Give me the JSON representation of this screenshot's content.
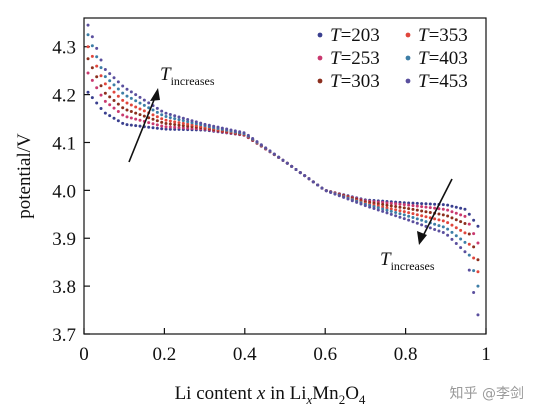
{
  "chart_data": {
    "type": "scatter",
    "title": "",
    "xlabel": {
      "prefix": "Li content ",
      "var": "x",
      "mid": " in Li",
      "sub1": "x",
      "mn": "Mn",
      "sub2": "2",
      "o": "O",
      "sub3": "4"
    },
    "ylabel": "potential/V",
    "xlim": [
      0,
      1
    ],
    "ylim": [
      3.7,
      4.36
    ],
    "x_ticks": [
      "0",
      "0.2",
      "0.4",
      "0.6",
      "0.8",
      "1"
    ],
    "y_ticks": [
      "3.7",
      "3.8",
      "3.9",
      "4.0",
      "4.1",
      "4.2",
      "4.3"
    ],
    "grid": false,
    "legend_position": "top-right",
    "series": [
      {
        "name": "T=203",
        "var": "T",
        "value": "=203",
        "color": "#3a3f8f",
        "x": [
          0.01,
          0.05,
          0.1,
          0.2,
          0.3,
          0.4,
          0.5,
          0.6,
          0.7,
          0.8,
          0.9,
          0.95,
          0.98
        ],
        "y": [
          4.205,
          4.163,
          4.138,
          4.128,
          4.126,
          4.115,
          4.06,
          4.0,
          3.98,
          3.974,
          3.97,
          3.96,
          3.925
        ]
      },
      {
        "name": "T=253",
        "var": "T",
        "value": "=253",
        "color": "#c9396f",
        "x": [
          0.01,
          0.05,
          0.1,
          0.2,
          0.3,
          0.4,
          0.5,
          0.6,
          0.7,
          0.8,
          0.9,
          0.95,
          0.98
        ],
        "y": [
          4.245,
          4.188,
          4.155,
          4.133,
          4.128,
          4.115,
          4.06,
          4.0,
          3.978,
          3.97,
          3.96,
          3.945,
          3.89
        ]
      },
      {
        "name": "T=303",
        "var": "T",
        "value": "=303",
        "color": "#8c2f1e",
        "x": [
          0.01,
          0.05,
          0.1,
          0.2,
          0.3,
          0.4,
          0.5,
          0.6,
          0.7,
          0.8,
          0.9,
          0.95,
          0.98
        ],
        "y": [
          4.275,
          4.205,
          4.17,
          4.14,
          4.13,
          4.116,
          4.06,
          4.0,
          3.976,
          3.963,
          3.948,
          3.93,
          3.855
        ]
      },
      {
        "name": "T=353",
        "var": "T",
        "value": "=353",
        "color": "#e0463c",
        "x": [
          0.01,
          0.05,
          0.1,
          0.2,
          0.3,
          0.4,
          0.5,
          0.6,
          0.7,
          0.8,
          0.9,
          0.95,
          0.98
        ],
        "y": [
          4.3,
          4.225,
          4.185,
          4.147,
          4.132,
          4.117,
          4.06,
          4.0,
          3.973,
          3.955,
          3.935,
          3.91,
          3.83
        ]
      },
      {
        "name": "T=403",
        "var": "T",
        "value": "=403",
        "color": "#3d7ea6",
        "x": [
          0.01,
          0.05,
          0.1,
          0.2,
          0.3,
          0.4,
          0.5,
          0.6,
          0.7,
          0.8,
          0.9,
          0.95,
          0.98
        ],
        "y": [
          4.325,
          4.24,
          4.2,
          4.155,
          4.135,
          4.118,
          4.06,
          4.0,
          3.971,
          3.948,
          3.922,
          3.89,
          3.8
        ]
      },
      {
        "name": "T=453",
        "var": "T",
        "value": "=453",
        "color": "#5a4f9e",
        "x": [
          0.01,
          0.05,
          0.1,
          0.2,
          0.3,
          0.4,
          0.5,
          0.6,
          0.7,
          0.8,
          0.9,
          0.95,
          0.98
        ],
        "y": [
          4.345,
          4.255,
          4.215,
          4.162,
          4.138,
          4.12,
          4.06,
          4.0,
          3.968,
          3.94,
          3.91,
          3.87,
          3.74
        ]
      }
    ],
    "annotations": [
      {
        "var": "T",
        "sub": "increases",
        "position": "upper-left",
        "arrow": "up"
      },
      {
        "var": "T",
        "sub": "increases",
        "position": "lower-right",
        "arrow": "down"
      }
    ]
  },
  "watermark": "知乎 @李剑"
}
